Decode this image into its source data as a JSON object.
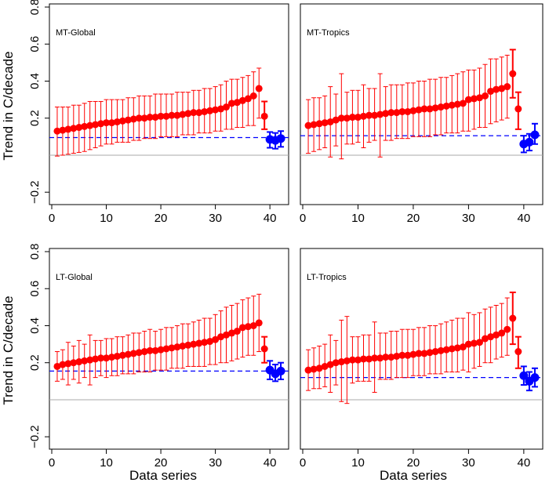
{
  "figure": {
    "ylabel": "Trend in C/decade",
    "xlabel": "Data series"
  },
  "chart_data": [
    {
      "type": "scatter",
      "panel_label": "MT-Global",
      "xlim": [
        0,
        43
      ],
      "ylim": [
        -0.25,
        0.8
      ],
      "xticks": [
        0,
        10,
        20,
        30,
        40
      ],
      "yticks": [
        -0.2,
        0.2,
        0.4,
        0.6,
        0.8
      ],
      "model_color": "#ff0000",
      "obs_color": "#0000ff",
      "reference_line": 0,
      "observation_mean_line": 0.095,
      "models": {
        "x": [
          1,
          2,
          3,
          4,
          5,
          6,
          7,
          8,
          9,
          10,
          11,
          12,
          13,
          14,
          15,
          16,
          17,
          18,
          19,
          20,
          21,
          22,
          23,
          24,
          25,
          26,
          27,
          28,
          29,
          30,
          31,
          32,
          33,
          34,
          35,
          36,
          37,
          38
        ],
        "y": [
          0.13,
          0.135,
          0.14,
          0.145,
          0.15,
          0.155,
          0.16,
          0.165,
          0.17,
          0.175,
          0.175,
          0.18,
          0.185,
          0.19,
          0.195,
          0.2,
          0.2,
          0.205,
          0.205,
          0.21,
          0.21,
          0.215,
          0.215,
          0.22,
          0.225,
          0.23,
          0.23,
          0.235,
          0.24,
          0.245,
          0.25,
          0.26,
          0.28,
          0.285,
          0.295,
          0.305,
          0.32,
          0.36
        ],
        "lower": [
          -0.005,
          0.0,
          0.005,
          0.01,
          0.015,
          0.02,
          0.03,
          0.04,
          0.05,
          0.06,
          0.06,
          0.07,
          0.07,
          0.07,
          0.08,
          0.08,
          0.09,
          0.09,
          0.09,
          0.1,
          0.1,
          0.1,
          0.1,
          0.11,
          0.11,
          0.11,
          0.12,
          0.12,
          0.12,
          0.13,
          0.13,
          0.14,
          0.14,
          0.15,
          0.15,
          0.16,
          0.16,
          0.2
        ],
        "upper": [
          0.26,
          0.26,
          0.26,
          0.27,
          0.27,
          0.28,
          0.29,
          0.29,
          0.29,
          0.3,
          0.3,
          0.3,
          0.3,
          0.31,
          0.31,
          0.32,
          0.32,
          0.32,
          0.33,
          0.33,
          0.33,
          0.33,
          0.34,
          0.34,
          0.34,
          0.35,
          0.35,
          0.36,
          0.36,
          0.37,
          0.38,
          0.4,
          0.41,
          0.41,
          0.42,
          0.43,
          0.45,
          0.47
        ]
      },
      "ensemble": {
        "x": [
          39
        ],
        "y": [
          0.21
        ],
        "lower": [
          0.14
        ],
        "upper": [
          0.29
        ]
      },
      "observations": {
        "x": [
          40,
          41,
          42
        ],
        "y": [
          0.085,
          0.08,
          0.09
        ],
        "lower": [
          0.04,
          0.035,
          0.045
        ],
        "upper": [
          0.125,
          0.12,
          0.13
        ]
      }
    },
    {
      "type": "scatter",
      "panel_label": "MT-Tropics",
      "xlim": [
        0,
        43
      ],
      "ylim": [
        -0.25,
        0.8
      ],
      "xticks": [
        0,
        10,
        20,
        30,
        40
      ],
      "yticks": [
        -0.2,
        0.2,
        0.4,
        0.6,
        0.8
      ],
      "model_color": "#ff0000",
      "obs_color": "#0000ff",
      "reference_line": 0,
      "observation_mean_line": 0.105,
      "models": {
        "x": [
          1,
          2,
          3,
          4,
          5,
          6,
          7,
          8,
          9,
          10,
          11,
          12,
          13,
          14,
          15,
          16,
          17,
          18,
          19,
          20,
          21,
          22,
          23,
          24,
          25,
          26,
          27,
          28,
          29,
          30,
          31,
          32,
          33,
          34,
          35,
          36,
          37
        ],
        "y": [
          0.16,
          0.165,
          0.17,
          0.175,
          0.18,
          0.19,
          0.2,
          0.2,
          0.205,
          0.205,
          0.21,
          0.215,
          0.215,
          0.22,
          0.225,
          0.23,
          0.23,
          0.235,
          0.235,
          0.24,
          0.245,
          0.25,
          0.25,
          0.255,
          0.26,
          0.265,
          0.27,
          0.275,
          0.28,
          0.3,
          0.305,
          0.31,
          0.32,
          0.345,
          0.355,
          0.36,
          0.37
        ],
        "lower": [
          0.01,
          0.02,
          0.03,
          0.04,
          -0.01,
          0.05,
          -0.02,
          0.06,
          0.06,
          0.07,
          0.04,
          0.07,
          0.08,
          -0.01,
          0.08,
          0.08,
          0.09,
          0.09,
          0.09,
          0.1,
          0.1,
          0.1,
          0.1,
          0.11,
          0.11,
          0.12,
          0.12,
          0.12,
          0.13,
          0.13,
          0.14,
          0.15,
          0.15,
          0.17,
          0.18,
          0.19,
          0.2
        ],
        "upper": [
          0.3,
          0.31,
          0.31,
          0.32,
          0.37,
          0.33,
          0.44,
          0.34,
          0.35,
          0.35,
          0.38,
          0.36,
          0.36,
          0.44,
          0.37,
          0.38,
          0.38,
          0.38,
          0.39,
          0.39,
          0.4,
          0.4,
          0.41,
          0.41,
          0.42,
          0.42,
          0.43,
          0.44,
          0.45,
          0.46,
          0.46,
          0.47,
          0.49,
          0.52,
          0.52,
          0.53,
          0.54
        ]
      },
      "ensemble": {
        "x": [
          38,
          39
        ],
        "y": [
          0.44,
          0.25
        ],
        "lower": [
          0.31,
          0.14
        ],
        "upper": [
          0.57,
          0.34
        ]
      },
      "observations": {
        "x": [
          40,
          41,
          42
        ],
        "y": [
          0.06,
          0.07,
          0.11
        ],
        "lower": [
          0.015,
          0.025,
          0.06
        ],
        "upper": [
          0.105,
          0.115,
          0.17
        ]
      }
    },
    {
      "type": "scatter",
      "panel_label": "LT-Global",
      "xlim": [
        0,
        43
      ],
      "ylim": [
        -0.25,
        0.8
      ],
      "xticks": [
        0,
        10,
        20,
        30,
        40
      ],
      "yticks": [
        -0.2,
        0.2,
        0.4,
        0.6,
        0.8
      ],
      "model_color": "#ff0000",
      "obs_color": "#0000ff",
      "reference_line": 0,
      "observation_mean_line": 0.155,
      "models": {
        "x": [
          1,
          2,
          3,
          4,
          5,
          6,
          7,
          8,
          9,
          10,
          11,
          12,
          13,
          14,
          15,
          16,
          17,
          18,
          19,
          20,
          21,
          22,
          23,
          24,
          25,
          26,
          27,
          28,
          29,
          30,
          31,
          32,
          33,
          34,
          35,
          36,
          37,
          38
        ],
        "y": [
          0.18,
          0.19,
          0.195,
          0.2,
          0.205,
          0.21,
          0.215,
          0.22,
          0.225,
          0.225,
          0.23,
          0.235,
          0.24,
          0.245,
          0.25,
          0.255,
          0.26,
          0.265,
          0.265,
          0.27,
          0.275,
          0.28,
          0.285,
          0.29,
          0.295,
          0.3,
          0.305,
          0.31,
          0.315,
          0.325,
          0.34,
          0.35,
          0.36,
          0.37,
          0.39,
          0.395,
          0.4,
          0.415
        ],
        "lower": [
          0.1,
          0.11,
          0.08,
          0.11,
          0.09,
          0.12,
          0.08,
          0.12,
          0.13,
          0.12,
          0.13,
          0.13,
          0.14,
          0.14,
          0.14,
          0.15,
          0.15,
          0.15,
          0.16,
          0.16,
          0.16,
          0.17,
          0.17,
          0.17,
          0.18,
          0.18,
          0.18,
          0.18,
          0.19,
          0.19,
          0.2,
          0.2,
          0.21,
          0.22,
          0.23,
          0.24,
          0.24,
          0.26
        ],
        "upper": [
          0.26,
          0.27,
          0.31,
          0.29,
          0.32,
          0.3,
          0.35,
          0.32,
          0.32,
          0.33,
          0.33,
          0.34,
          0.34,
          0.35,
          0.36,
          0.36,
          0.37,
          0.38,
          0.37,
          0.38,
          0.39,
          0.39,
          0.4,
          0.41,
          0.41,
          0.42,
          0.43,
          0.44,
          0.44,
          0.46,
          0.48,
          0.5,
          0.51,
          0.52,
          0.54,
          0.55,
          0.56,
          0.57
        ]
      },
      "ensemble": {
        "x": [
          39
        ],
        "y": [
          0.275
        ],
        "lower": [
          0.2
        ],
        "upper": [
          0.34
        ]
      },
      "observations": {
        "x": [
          40,
          41,
          42
        ],
        "y": [
          0.16,
          0.14,
          0.155
        ],
        "lower": [
          0.11,
          0.1,
          0.11
        ],
        "upper": [
          0.21,
          0.19,
          0.2
        ]
      }
    },
    {
      "type": "scatter",
      "panel_label": "LT-Tropics",
      "xlim": [
        0,
        43
      ],
      "ylim": [
        -0.25,
        0.8
      ],
      "xticks": [
        0,
        10,
        20,
        30,
        40
      ],
      "yticks": [
        -0.2,
        0.2,
        0.4,
        0.6,
        0.8
      ],
      "model_color": "#ff0000",
      "obs_color": "#0000ff",
      "reference_line": 0,
      "observation_mean_line": 0.12,
      "models": {
        "x": [
          1,
          2,
          3,
          4,
          5,
          6,
          7,
          8,
          9,
          10,
          11,
          12,
          13,
          14,
          15,
          16,
          17,
          18,
          19,
          20,
          21,
          22,
          23,
          24,
          25,
          26,
          27,
          28,
          29,
          30,
          31,
          32,
          33,
          34,
          35,
          36,
          37
        ],
        "y": [
          0.16,
          0.165,
          0.17,
          0.18,
          0.19,
          0.2,
          0.205,
          0.21,
          0.215,
          0.215,
          0.22,
          0.22,
          0.225,
          0.225,
          0.23,
          0.23,
          0.235,
          0.24,
          0.24,
          0.245,
          0.25,
          0.25,
          0.255,
          0.26,
          0.265,
          0.27,
          0.275,
          0.28,
          0.285,
          0.3,
          0.305,
          0.31,
          0.33,
          0.34,
          0.35,
          0.36,
          0.38
        ],
        "lower": [
          0.05,
          0.06,
          0.06,
          0.07,
          0.04,
          0.08,
          -0.01,
          -0.02,
          0.09,
          0.1,
          0.1,
          0.1,
          0.04,
          0.11,
          0.11,
          0.11,
          0.12,
          0.12,
          0.12,
          0.13,
          0.13,
          0.13,
          0.14,
          0.14,
          0.14,
          0.15,
          0.15,
          0.15,
          0.16,
          0.15,
          0.17,
          0.18,
          0.2,
          0.2,
          0.22,
          0.23,
          0.24
        ],
        "upper": [
          0.27,
          0.28,
          0.29,
          0.3,
          0.35,
          0.32,
          0.43,
          0.45,
          0.34,
          0.34,
          0.35,
          0.35,
          0.42,
          0.36,
          0.36,
          0.37,
          0.37,
          0.38,
          0.38,
          0.38,
          0.39,
          0.39,
          0.4,
          0.4,
          0.41,
          0.42,
          0.43,
          0.44,
          0.44,
          0.47,
          0.46,
          0.47,
          0.49,
          0.5,
          0.51,
          0.52,
          0.55
        ]
      },
      "ensemble": {
        "x": [
          38,
          39
        ],
        "y": [
          0.44,
          0.26
        ],
        "lower": [
          0.3,
          0.17
        ],
        "upper": [
          0.58,
          0.34
        ]
      },
      "observations": {
        "x": [
          40,
          41,
          42
        ],
        "y": [
          0.13,
          0.1,
          0.12
        ],
        "lower": [
          0.08,
          0.05,
          0.07
        ],
        "upper": [
          0.18,
          0.15,
          0.17
        ]
      }
    }
  ]
}
